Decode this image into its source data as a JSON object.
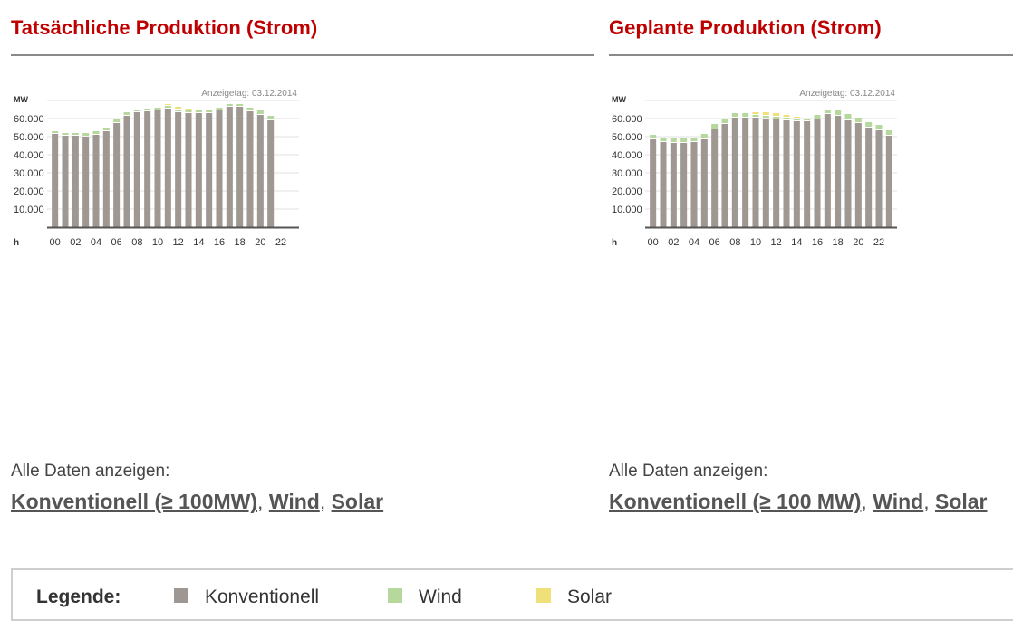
{
  "left": {
    "title": "Tatsächliche Produktion (Strom)",
    "alle_label": "Alle Daten anzeigen:",
    "links": [
      "Konventionell (≥ 100MW)",
      "Wind",
      "Solar"
    ]
  },
  "right": {
    "title": "Geplante Produktion (Strom)",
    "alle_label": "Alle Daten anzeigen:",
    "links": [
      "Konventionell (≥ 100 MW)",
      "Wind",
      "Solar"
    ]
  },
  "legend": {
    "title": "Legende:",
    "items": [
      {
        "label": "Konventionell",
        "color": "#9e9792"
      },
      {
        "label": "Wind",
        "color": "#b6d89c"
      },
      {
        "label": "Solar",
        "color": "#f0e07a"
      }
    ]
  },
  "chart_data": [
    {
      "type": "bar",
      "stacked": true,
      "annotation": "Anzeigetag: 03.12.2014",
      "ylabel": "MW",
      "xlabel": "h",
      "ylim": [
        0,
        70000
      ],
      "yticks": [
        "10.000",
        "20.000",
        "30.000",
        "40.000",
        "50.000",
        "60.000"
      ],
      "xtick_labels": [
        "00",
        "02",
        "04",
        "06",
        "08",
        "10",
        "12",
        "14",
        "16",
        "18",
        "20",
        "22"
      ],
      "categories": [
        "00",
        "01",
        "02",
        "03",
        "04",
        "05",
        "06",
        "07",
        "08",
        "09",
        "10",
        "11",
        "12",
        "13",
        "14",
        "15",
        "16",
        "17",
        "18",
        "19",
        "20",
        "21",
        "22",
        "23"
      ],
      "series": [
        {
          "name": "Konventionell",
          "color": "#9e9792",
          "values": [
            51500,
            50500,
            50500,
            50000,
            51000,
            53000,
            57500,
            61500,
            63500,
            64000,
            64500,
            65500,
            63500,
            63000,
            63000,
            63000,
            64500,
            66500,
            66500,
            64000,
            62000,
            59000,
            null,
            null
          ]
        },
        {
          "name": "Wind",
          "color": "#b6d89c",
          "values": [
            1500,
            1500,
            1500,
            2000,
            2000,
            2000,
            2000,
            2000,
            1500,
            1500,
            1500,
            1500,
            1500,
            1500,
            1500,
            1500,
            1500,
            1500,
            1500,
            2000,
            2500,
            2500,
            null,
            null
          ]
        },
        {
          "name": "Solar",
          "color": "#f0e07a",
          "values": [
            0,
            0,
            0,
            0,
            0,
            0,
            0,
            0,
            0,
            0,
            500,
            1000,
            1500,
            1000,
            500,
            0,
            0,
            0,
            0,
            0,
            0,
            0,
            null,
            null
          ]
        }
      ]
    },
    {
      "type": "bar",
      "stacked": true,
      "annotation": "Anzeigetag: 03.12.2014",
      "ylabel": "MW",
      "xlabel": "h",
      "ylim": [
        0,
        70000
      ],
      "yticks": [
        "10.000",
        "20.000",
        "30.000",
        "40.000",
        "50.000",
        "60.000"
      ],
      "xtick_labels": [
        "00",
        "02",
        "04",
        "06",
        "08",
        "10",
        "12",
        "14",
        "16",
        "18",
        "20",
        "22"
      ],
      "categories": [
        "00",
        "01",
        "02",
        "03",
        "04",
        "05",
        "06",
        "07",
        "08",
        "09",
        "10",
        "11",
        "12",
        "13",
        "14",
        "15",
        "16",
        "17",
        "18",
        "19",
        "20",
        "21",
        "22",
        "23"
      ],
      "series": [
        {
          "name": "Konventionell",
          "color": "#9e9792",
          "values": [
            48500,
            47000,
            46500,
            46500,
            47000,
            48500,
            54000,
            57000,
            60500,
            60500,
            60500,
            60000,
            59500,
            59000,
            58500,
            58500,
            59500,
            62500,
            61500,
            59000,
            57500,
            55000,
            53500,
            50500
          ]
        },
        {
          "name": "Wind",
          "color": "#b6d89c",
          "values": [
            2500,
            2500,
            2500,
            2500,
            2500,
            3000,
            3000,
            3000,
            2500,
            2500,
            1500,
            1500,
            1500,
            1500,
            1500,
            1500,
            2500,
            2500,
            3000,
            3500,
            3000,
            3000,
            3000,
            3000
          ]
        },
        {
          "name": "Solar",
          "color": "#f0e07a",
          "values": [
            0,
            0,
            0,
            0,
            0,
            0,
            0,
            0,
            0,
            500,
            1500,
            2000,
            2000,
            1500,
            1000,
            500,
            0,
            0,
            0,
            0,
            0,
            0,
            0,
            0
          ]
        }
      ]
    }
  ]
}
